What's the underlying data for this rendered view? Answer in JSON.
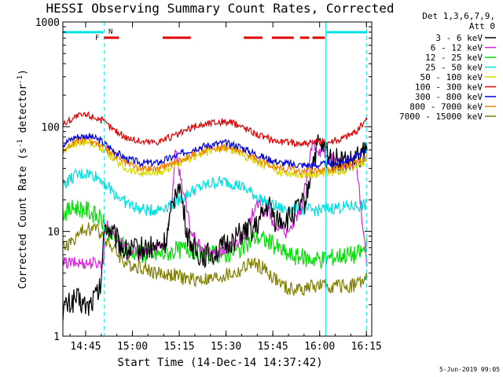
{
  "chart_data": {
    "type": "line",
    "title": "HESSI Observing Summary Count Rates, Corrected",
    "xlabel": "Start Time (14-Dec-14 14:37:42)",
    "ylabel": "Corrected Count Rate (s",
    "ylabel_sup1": "-1",
    "ylabel_mid": " detector",
    "ylabel_sup2": "-1",
    "ylabel_end": ")",
    "yscale": "log",
    "ylim": [
      1,
      1000
    ],
    "xlim_minutes": [
      0,
      99
    ],
    "x_ticks": [
      {
        "minute": 7.3,
        "label": "14:45"
      },
      {
        "minute": 22.3,
        "label": "15:00"
      },
      {
        "minute": 37.3,
        "label": "15:15"
      },
      {
        "minute": 52.3,
        "label": "15:30"
      },
      {
        "minute": 67.3,
        "label": "15:45"
      },
      {
        "minute": 82.3,
        "label": "16:00"
      },
      {
        "minute": 97.3,
        "label": "16:15"
      }
    ],
    "y_ticks": [
      {
        "value": 1,
        "label": "1"
      },
      {
        "value": 10,
        "label": "10"
      },
      {
        "value": 100,
        "label": "100"
      },
      {
        "value": 1000,
        "label": "1000"
      }
    ],
    "legend_header": [
      "Det 1,3,6,7,9,",
      "Att 0"
    ],
    "legend_position": "right",
    "grid": false,
    "series": [
      {
        "name": "3 - 6 keV",
        "color": "#000000",
        "x": [
          0,
          4,
          8,
          12,
          13.5,
          20,
          26,
          30,
          33,
          37,
          40,
          43,
          46,
          50,
          56,
          62,
          66,
          68,
          72,
          74,
          78,
          80,
          82,
          86,
          92,
          96,
          97.5
        ],
        "y": [
          1.8,
          2.3,
          1.9,
          2.8,
          12,
          6.5,
          7,
          7,
          8,
          32,
          9,
          6,
          6,
          6.5,
          9,
          11,
          18,
          13,
          13,
          15,
          20,
          45,
          70,
          50,
          45,
          55,
          60
        ]
      },
      {
        "name": "6 - 12 keV",
        "color": "#e020e0",
        "x": [
          0,
          13,
          13.5,
          20,
          26,
          30,
          33,
          35,
          36,
          38,
          41,
          44,
          48,
          52,
          56,
          60,
          62,
          64,
          66,
          68,
          70,
          72,
          74,
          76,
          78,
          80,
          82,
          86,
          90,
          94,
          97.5
        ],
        "y": [
          5,
          5,
          12,
          7,
          6,
          7,
          8,
          20,
          60,
          30,
          10,
          7,
          6,
          6.5,
          8,
          12,
          20,
          15,
          16,
          10,
          12,
          9,
          12,
          15,
          30,
          70,
          60,
          48,
          44,
          45,
          5
        ]
      },
      {
        "name": "12 - 25 keV",
        "color": "#00e000",
        "x": [
          0,
          4,
          8,
          12,
          16,
          20,
          26,
          30,
          36,
          40,
          46,
          52,
          58,
          62,
          66,
          72,
          78,
          84,
          90,
          94,
          97.5
        ],
        "y": [
          15,
          17,
          16,
          13,
          9,
          7,
          6,
          6,
          6.5,
          7,
          6,
          6,
          7,
          9,
          8,
          6,
          5.5,
          5.5,
          6,
          6,
          7
        ]
      },
      {
        "name": "25 - 50 keV",
        "color": "#00e0e0",
        "x": [
          0,
          4,
          8,
          12,
          16,
          20,
          25,
          30,
          36,
          42,
          48,
          52,
          56,
          60,
          65,
          70,
          76,
          82,
          88,
          94,
          97.5
        ],
        "y": [
          28,
          34,
          36,
          32,
          24,
          19,
          16,
          16,
          19,
          25,
          29,
          30,
          28,
          24,
          19,
          16.5,
          16,
          16,
          17,
          17.5,
          18
        ]
      },
      {
        "name": "50 - 100 keV",
        "color": "#d8d800",
        "x": [
          0,
          4,
          8,
          12,
          16,
          20,
          25,
          30,
          36,
          42,
          48,
          52,
          56,
          60,
          65,
          70,
          76,
          82,
          88,
          94,
          97.5
        ],
        "y": [
          58,
          70,
          72,
          64,
          50,
          40,
          36,
          36,
          42,
          52,
          60,
          62,
          58,
          50,
          42,
          37,
          35,
          35,
          37,
          42,
          48
        ]
      },
      {
        "name": "100 - 300 keV",
        "color": "#e00000",
        "x": [
          0,
          4,
          8,
          12,
          16,
          20,
          25,
          30,
          36,
          42,
          48,
          52,
          56,
          60,
          65,
          70,
          76,
          82,
          88,
          94,
          97.5
        ],
        "y": [
          105,
          125,
          130,
          118,
          95,
          80,
          72,
          72,
          82,
          100,
          110,
          112,
          105,
          92,
          78,
          72,
          70,
          70,
          74,
          90,
          120
        ]
      },
      {
        "name": "300 - 800 keV",
        "color": "#0000e0",
        "x": [
          0,
          4,
          8,
          12,
          16,
          20,
          25,
          30,
          36,
          42,
          48,
          52,
          56,
          60,
          65,
          70,
          76,
          82,
          88,
          94,
          97.5
        ],
        "y": [
          68,
          80,
          82,
          74,
          60,
          50,
          45,
          45,
          52,
          62,
          68,
          70,
          66,
          58,
          50,
          45,
          43,
          43,
          45,
          52,
          60
        ]
      },
      {
        "name": "800 - 7000 keV",
        "color": "#f08000",
        "x": [
          0,
          4,
          8,
          12,
          16,
          20,
          25,
          30,
          36,
          42,
          48,
          52,
          56,
          60,
          65,
          70,
          76,
          82,
          88,
          94,
          97.5
        ],
        "y": [
          60,
          72,
          75,
          67,
          54,
          45,
          40,
          40,
          46,
          55,
          62,
          64,
          60,
          53,
          45,
          40,
          38,
          38,
          40,
          46,
          52
        ]
      },
      {
        "name": "7000 - 15000 keV",
        "color": "#808000",
        "x": [
          0,
          3,
          6,
          10,
          13,
          16,
          20,
          26,
          30,
          36,
          40,
          44,
          48,
          52,
          56,
          60,
          64,
          68,
          72,
          76,
          80,
          84,
          88,
          92,
          97.5
        ],
        "y": [
          7,
          8,
          10,
          11,
          9,
          7,
          5,
          4.5,
          4,
          3.8,
          3.5,
          3.5,
          3.5,
          3.8,
          4,
          5,
          4.5,
          3.5,
          2.8,
          2.8,
          3,
          3,
          3,
          3,
          3.5
        ]
      }
    ],
    "top_bars": {
      "cyan": {
        "color": "#00e0e0",
        "ranges": [
          [
            0,
            13
          ],
          [
            84.5,
            97.5
          ]
        ]
      },
      "red": {
        "color": "#e00000",
        "ranges": [
          [
            13.2,
            18
          ],
          [
            32,
            41
          ],
          [
            58,
            64
          ],
          [
            67,
            74
          ],
          [
            76,
            79
          ],
          [
            80,
            84
          ]
        ]
      },
      "F_label": "F",
      "N_label": "N"
    },
    "vertical_lines": [
      {
        "minute": 13.3,
        "style": "dashed",
        "color": "#00e0e0"
      },
      {
        "minute": 84.3,
        "style": "solid",
        "color": "#00e0e0"
      },
      {
        "minute": 97.3,
        "style": "dashed",
        "color": "#00e0e0"
      }
    ],
    "footer_date": "5-Jun-2019 09:05"
  }
}
